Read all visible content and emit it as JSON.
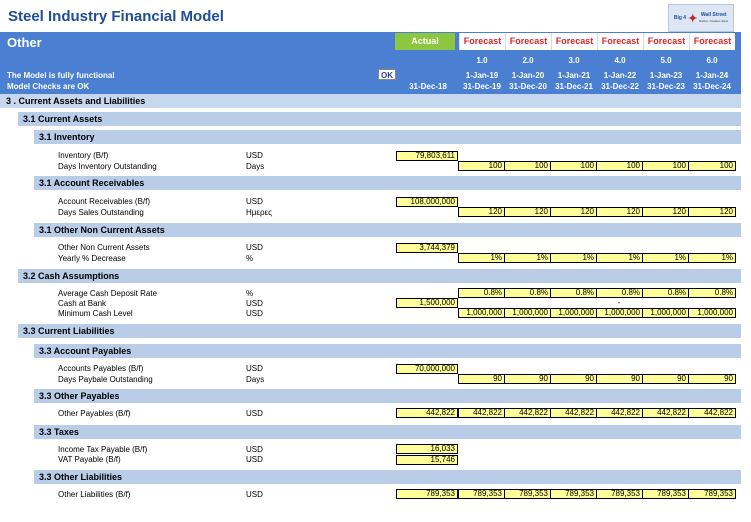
{
  "title": "Steel Industry Financial Model",
  "logo": {
    "line1": "Big 4",
    "line2": "Wall Street",
    "tagline": "Better. Greater. Best"
  },
  "header": {
    "section": "Other",
    "actual_label": "Actual",
    "forecast_label": "Forecast",
    "msg1": "The Model is fully functional",
    "msg2": "Model Checks are OK",
    "ok_label": "OK",
    "actual_date": "31-Dec-18",
    "periods": [
      {
        "num": "1.0",
        "start": "1-Jan-19",
        "end": "31-Dec-19"
      },
      {
        "num": "2.0",
        "start": "1-Jan-20",
        "end": "31-Dec-20"
      },
      {
        "num": "3.0",
        "start": "1-Jan-21",
        "end": "31-Dec-21"
      },
      {
        "num": "4.0",
        "start": "1-Jan-22",
        "end": "31-Dec-22"
      },
      {
        "num": "5.0",
        "start": "1-Jan-23",
        "end": "31-Dec-23"
      },
      {
        "num": "6.0",
        "start": "1-Jan-24",
        "end": "31-Dec-24"
      }
    ]
  },
  "s3": "3 .  Current Assets and Liabilities",
  "s31": "3.1 Current Assets",
  "s311": "3.1 Inventory",
  "inv_bf": {
    "label": "Inventory (B/f)",
    "unit": "USD",
    "actual": "79,803,611"
  },
  "dio": {
    "label": "Days Inventory Outstanding",
    "unit": "Days",
    "values": [
      "100",
      "100",
      "100",
      "100",
      "100",
      "100"
    ]
  },
  "s312": "3.1 Account Receivables",
  "ar_bf": {
    "label": "Account Receivables (B/f)",
    "unit": "USD",
    "actual": "108,000,000"
  },
  "dso": {
    "label": "Days Sales Outstanding",
    "unit": "Ημερες",
    "values": [
      "120",
      "120",
      "120",
      "120",
      "120",
      "120"
    ]
  },
  "s313": "3.1 Other Non Current Assets",
  "onca": {
    "label": "Other Non Current Assets",
    "unit": "USD",
    "actual": "3,744,379"
  },
  "ydec": {
    "label": "Yearly % Decrease",
    "unit": "%",
    "values": [
      "1%",
      "1%",
      "1%",
      "1%",
      "1%",
      "1%"
    ]
  },
  "s32": "3.2 Cash Assumptions",
  "acdr": {
    "label": "Average Cash Deposit Rate",
    "unit": "%",
    "values": [
      "0.8%",
      "0.8%",
      "0.8%",
      "0.8%",
      "0.8%",
      "0.8%"
    ]
  },
  "cab": {
    "label": "Cash at Bank",
    "unit": "USD",
    "actual": "1,500,000",
    "dash": "-"
  },
  "mcl": {
    "label": "Minimum Cash Level",
    "unit": "USD",
    "values": [
      "1,000,000",
      "1,000,000",
      "1,000,000",
      "1,000,000",
      "1,000,000",
      "1,000,000"
    ]
  },
  "s33": "3.3 Current Liabilities",
  "s331": "3.3 Account Payables",
  "ap_bf": {
    "label": "Accounts Payables (B/f)",
    "unit": "USD",
    "actual": "70,000,000"
  },
  "dpo": {
    "label": "Days Paybale Outstanding",
    "unit": "Days",
    "values": [
      "90",
      "90",
      "90",
      "90",
      "90",
      "90"
    ]
  },
  "s332": "3.3 Other Payables",
  "op": {
    "label": "Other Payables (B/f)",
    "unit": "USD",
    "actual": "442,822",
    "values": [
      "442,822",
      "442,822",
      "442,822",
      "442,822",
      "442,822",
      "442,822"
    ]
  },
  "s333": "3.3 Taxes",
  "itp": {
    "label": "Income Tax Payable (B/f)",
    "unit": "USD",
    "actual": "16,033"
  },
  "vat": {
    "label": "VAT Payable (B/f)",
    "unit": "USD",
    "actual": "15,746"
  },
  "s334": "3.3 Other Liabilities",
  "ol": {
    "label": "Other Liabilities (B/f)",
    "unit": "USD",
    "actual": "789,353",
    "values": [
      "789,353",
      "789,353",
      "789,353",
      "789,353",
      "789,353",
      "789,353"
    ]
  }
}
